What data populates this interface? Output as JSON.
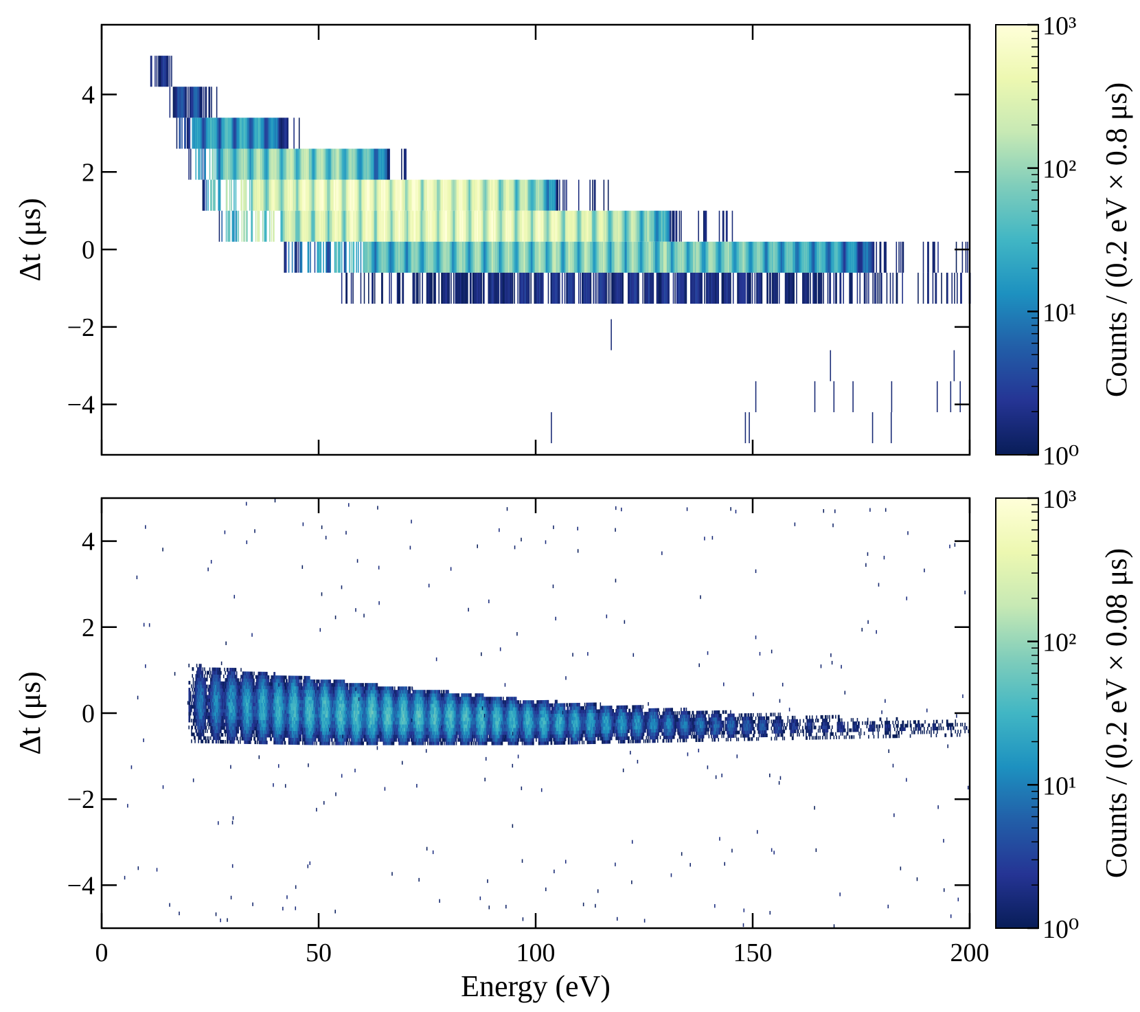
{
  "chart_data": [
    {
      "type": "heatmap",
      "panel": "top",
      "xlabel": "",
      "ylabel": "Δt (μs)",
      "xlim": [
        0,
        200
      ],
      "ylim": [
        -5.3,
        5.8
      ],
      "xticks": [
        0,
        50,
        100,
        150,
        200
      ],
      "yticks": [
        -4,
        -2,
        0,
        2,
        4
      ],
      "ytick_labels": [
        "−4",
        "−2",
        "0",
        "2",
        "4"
      ],
      "bin_width_x": 0.2,
      "bin_width_y": 0.8,
      "colorscale": "YlGnBu (log)",
      "colorbar": {
        "label": "Counts / (0.2 eV × 0.8 μs)",
        "range": [
          1,
          1000
        ],
        "tick_labels": [
          "10⁰",
          "10¹",
          "10²",
          "10³"
        ]
      },
      "ridge": [
        {
          "x_start": 11,
          "x_end": 17,
          "y": 4.6,
          "peak_counts": 3
        },
        {
          "x_start": 15,
          "x_end": 27,
          "y": 3.8,
          "peak_counts": 6
        },
        {
          "x_start": 17,
          "x_end": 47,
          "y": 3.0,
          "peak_counts": 40
        },
        {
          "x_start": 20,
          "x_end": 73,
          "y": 2.2,
          "peak_counts": 200
        },
        {
          "x_start": 23,
          "x_end": 117,
          "y": 1.4,
          "peak_counts": 900
        },
        {
          "x_start": 27,
          "x_end": 147,
          "y": 0.6,
          "peak_counts": 800
        },
        {
          "x_start": 41,
          "x_end": 200,
          "y": -0.2,
          "peak_counts": 150
        },
        {
          "x_start": 55,
          "x_end": 200,
          "y": -1.0,
          "peak_counts": 3
        }
      ],
      "sparse_bins": [
        {
          "x": 103.5,
          "y": -4.6
        },
        {
          "x": 148.2,
          "y": -4.6
        },
        {
          "x": 149.1,
          "y": -4.6
        },
        {
          "x": 150.6,
          "y": -3.8
        },
        {
          "x": 164.2,
          "y": -3.8
        },
        {
          "x": 168.6,
          "y": -3.8
        },
        {
          "x": 173.0,
          "y": -3.8
        },
        {
          "x": 177.5,
          "y": -4.6
        },
        {
          "x": 181.8,
          "y": -4.6
        },
        {
          "x": 181.9,
          "y": -3.8
        },
        {
          "x": 192.4,
          "y": -3.8
        },
        {
          "x": 195.5,
          "y": -3.8
        },
        {
          "x": 197.7,
          "y": -3.8
        },
        {
          "x": 196.3,
          "y": -3.0
        },
        {
          "x": 167.8,
          "y": -3.0
        },
        {
          "x": 117.3,
          "y": -2.2
        }
      ]
    },
    {
      "type": "heatmap",
      "panel": "bottom",
      "xlabel": "Energy (eV)",
      "ylabel": "Δt (μs)",
      "xlim": [
        0,
        200
      ],
      "ylim": [
        -5,
        5
      ],
      "xticks": [
        0,
        50,
        100,
        150,
        200
      ],
      "xtick_labels": [
        "0",
        "50",
        "100",
        "150",
        "200"
      ],
      "yticks": [
        -4,
        -2,
        0,
        2,
        4
      ],
      "ytick_labels": [
        "−4",
        "−2",
        "0",
        "2",
        "4"
      ],
      "bin_width_x": 0.2,
      "bin_width_y": 0.08,
      "colorscale": "YlGnBu (log)",
      "colorbar": {
        "label": "Counts / (0.2 eV × 0.08 μs)",
        "range": [
          1,
          1000
        ],
        "tick_labels": [
          "10⁰",
          "10¹",
          "10²",
          "10³"
        ]
      },
      "band": {
        "peak_spacing_ev": 3.6,
        "x_start": 20,
        "x_end": 200,
        "center_dt": [
          [
            20,
            0.25
          ],
          [
            50,
            0.05
          ],
          [
            100,
            -0.2
          ],
          [
            150,
            -0.3
          ],
          [
            200,
            -0.35
          ]
        ],
        "half_width_dt": [
          [
            20,
            0.9
          ],
          [
            50,
            0.75
          ],
          [
            100,
            0.5
          ],
          [
            150,
            0.3
          ],
          [
            200,
            0.15
          ]
        ],
        "peak_counts": [
          [
            20,
            6
          ],
          [
            40,
            30
          ],
          [
            60,
            45
          ],
          [
            80,
            40
          ],
          [
            100,
            30
          ],
          [
            130,
            12
          ],
          [
            160,
            3
          ],
          [
            200,
            1
          ]
        ]
      }
    }
  ]
}
